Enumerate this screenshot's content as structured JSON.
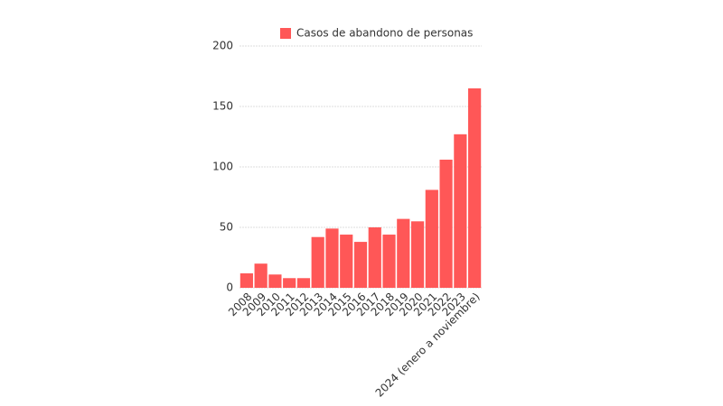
{
  "chart_data": {
    "type": "bar",
    "categories": [
      "2008",
      "2009",
      "2010",
      "2011",
      "2012",
      "2013",
      "2014",
      "2015",
      "2016",
      "2017",
      "2018",
      "2019",
      "2020",
      "2021",
      "2022",
      "2023",
      "2024 (enero a noviembre)"
    ],
    "series": [
      {
        "name": "Casos de abandono de personas",
        "color": "#ff5757",
        "values": [
          12,
          20,
          11,
          8,
          8,
          42,
          49,
          44,
          38,
          50,
          44,
          57,
          55,
          81,
          106,
          127,
          165
        ]
      }
    ],
    "ylim": [
      0,
      200
    ],
    "yticks": [
      0,
      50,
      100,
      150,
      200
    ],
    "grid": true,
    "legend": "top"
  }
}
